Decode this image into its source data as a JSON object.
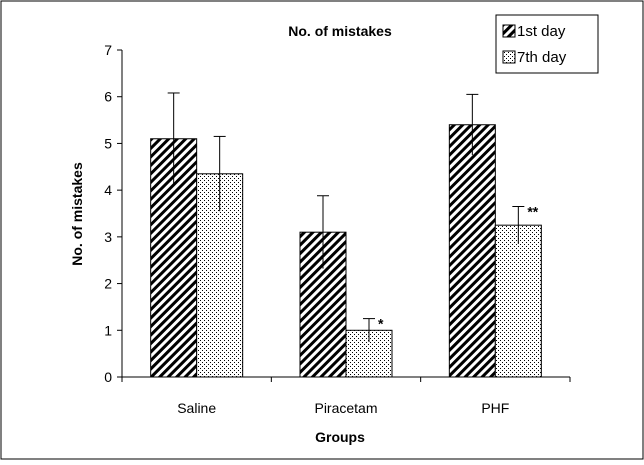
{
  "chart_data": {
    "type": "bar",
    "title": "No. of mistakes",
    "xlabel": "Groups",
    "ylabel": "No. of mistakes",
    "ylim": [
      0,
      7
    ],
    "yticks": [
      0,
      1,
      2,
      3,
      4,
      5,
      6,
      7
    ],
    "categories": [
      "Saline",
      "Piracetam",
      "PHF"
    ],
    "series": [
      {
        "name": "1st day",
        "pattern": "diagonal-hatch",
        "values": [
          5.1,
          3.1,
          5.4
        ],
        "errors": [
          0.98,
          0.78,
          0.65
        ],
        "significance": [
          "",
          "",
          ""
        ]
      },
      {
        "name": "7th day",
        "pattern": "dots",
        "values": [
          4.35,
          1.0,
          3.25
        ],
        "errors": [
          0.8,
          0.25,
          0.4
        ],
        "significance": [
          "",
          "*",
          "**"
        ]
      }
    ],
    "legend_position": "top-right",
    "grid": false
  },
  "colors": {
    "border": "#000000",
    "background": "#ffffff",
    "hatch": "#000000"
  }
}
